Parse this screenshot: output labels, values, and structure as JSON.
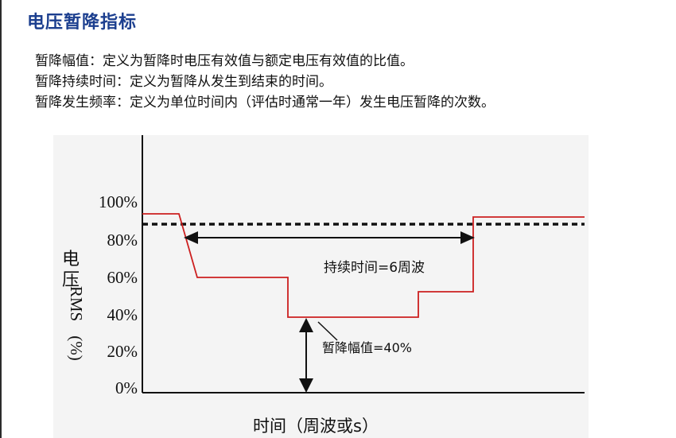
{
  "page": {
    "title": "电压暂降指标",
    "definitions": [
      "暂降幅值：定义为暂降时电压有效值与额定电压有效值的比值。",
      "暂降持续时间：定义为暂降从发生到结束的时间。",
      "暂降发生频率：定义为单位时间内（评估时通常一年）发生电压暂降的次数。"
    ]
  },
  "diagram": {
    "y_ticks": [
      "100%",
      "80%",
      "60%",
      "40%",
      "20%",
      "0%"
    ],
    "y_label_chars": [
      "电",
      "压"
    ],
    "y_label_rms": "RMS",
    "y_label_unit": "(%)",
    "x_label": "时间（周波或s）",
    "duration_label": "持续时间=6周波",
    "magnitude_label": "暂降幅值=40%",
    "colors": {
      "waveform": "#cc1f1f",
      "axis": "#111111",
      "threshold": "#111111"
    }
  }
}
